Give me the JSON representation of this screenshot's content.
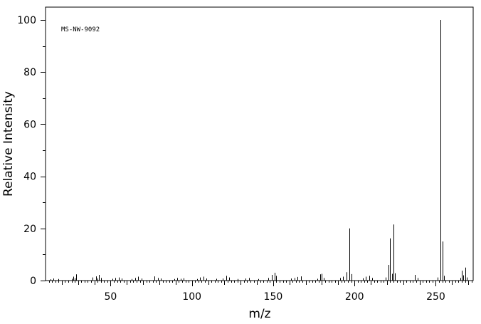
{
  "chart_data": {
    "type": "bar",
    "annotation": "MS-NW-9092",
    "xlabel": "m/z",
    "ylabel": "Relative Intensity",
    "xlim": [
      10,
      273
    ],
    "ylim": [
      0,
      100
    ],
    "x_ticks": [
      50,
      100,
      150,
      200,
      250
    ],
    "y_ticks": [
      0,
      20,
      40,
      60,
      80,
      100
    ],
    "grid": false,
    "peaks": [
      {
        "mz": 13,
        "intensity": 0.5
      },
      {
        "mz": 15,
        "intensity": 0.8
      },
      {
        "mz": 18,
        "intensity": 0.6
      },
      {
        "mz": 26,
        "intensity": 0.7
      },
      {
        "mz": 27,
        "intensity": 1.5
      },
      {
        "mz": 28,
        "intensity": 0.9
      },
      {
        "mz": 29,
        "intensity": 2.4
      },
      {
        "mz": 39,
        "intensity": 1.2
      },
      {
        "mz": 41,
        "intensity": 1.6
      },
      {
        "mz": 42,
        "intensity": 0.8
      },
      {
        "mz": 43,
        "intensity": 2.2
      },
      {
        "mz": 44,
        "intensity": 1.0
      },
      {
        "mz": 51,
        "intensity": 0.7
      },
      {
        "mz": 53,
        "intensity": 1.0
      },
      {
        "mz": 55,
        "intensity": 1.2
      },
      {
        "mz": 57,
        "intensity": 0.8
      },
      {
        "mz": 63,
        "intensity": 0.6
      },
      {
        "mz": 65,
        "intensity": 1.0
      },
      {
        "mz": 67,
        "intensity": 1.5
      },
      {
        "mz": 69,
        "intensity": 0.8
      },
      {
        "mz": 77,
        "intensity": 1.6
      },
      {
        "mz": 79,
        "intensity": 1.0
      },
      {
        "mz": 81,
        "intensity": 0.8
      },
      {
        "mz": 89,
        "intensity": 0.6
      },
      {
        "mz": 91,
        "intensity": 1.0
      },
      {
        "mz": 93,
        "intensity": 0.7
      },
      {
        "mz": 95,
        "intensity": 0.9
      },
      {
        "mz": 103,
        "intensity": 0.6
      },
      {
        "mz": 105,
        "intensity": 1.2
      },
      {
        "mz": 107,
        "intensity": 1.5
      },
      {
        "mz": 109,
        "intensity": 0.8
      },
      {
        "mz": 115,
        "intensity": 0.7
      },
      {
        "mz": 119,
        "intensity": 0.8
      },
      {
        "mz": 121,
        "intensity": 1.8
      },
      {
        "mz": 123,
        "intensity": 1.2
      },
      {
        "mz": 128,
        "intensity": 0.6
      },
      {
        "mz": 133,
        "intensity": 0.8
      },
      {
        "mz": 135,
        "intensity": 1.0
      },
      {
        "mz": 141,
        "intensity": 0.6
      },
      {
        "mz": 147,
        "intensity": 1.0
      },
      {
        "mz": 149,
        "intensity": 2.2
      },
      {
        "mz": 151,
        "intensity": 3.0
      },
      {
        "mz": 152,
        "intensity": 1.8
      },
      {
        "mz": 161,
        "intensity": 0.8
      },
      {
        "mz": 163,
        "intensity": 1.0
      },
      {
        "mz": 165,
        "intensity": 1.4
      },
      {
        "mz": 167,
        "intensity": 1.6
      },
      {
        "mz": 177,
        "intensity": 0.7
      },
      {
        "mz": 179,
        "intensity": 2.4
      },
      {
        "mz": 180,
        "intensity": 2.6
      },
      {
        "mz": 181,
        "intensity": 1.0
      },
      {
        "mz": 191,
        "intensity": 1.0
      },
      {
        "mz": 193,
        "intensity": 1.5
      },
      {
        "mz": 195,
        "intensity": 3.2
      },
      {
        "mz": 197,
        "intensity": 20.0
      },
      {
        "mz": 198,
        "intensity": 2.5
      },
      {
        "mz": 205,
        "intensity": 0.9
      },
      {
        "mz": 207,
        "intensity": 1.5
      },
      {
        "mz": 209,
        "intensity": 1.8
      },
      {
        "mz": 211,
        "intensity": 1.0
      },
      {
        "mz": 219,
        "intensity": 1.2
      },
      {
        "mz": 221,
        "intensity": 6.0
      },
      {
        "mz": 222,
        "intensity": 16.2
      },
      {
        "mz": 223,
        "intensity": 2.6
      },
      {
        "mz": 224,
        "intensity": 21.5
      },
      {
        "mz": 225,
        "intensity": 2.8
      },
      {
        "mz": 237,
        "intensity": 2.2
      },
      {
        "mz": 239,
        "intensity": 1.0
      },
      {
        "mz": 251,
        "intensity": 1.2
      },
      {
        "mz": 253,
        "intensity": 100.0
      },
      {
        "mz": 254,
        "intensity": 15.0
      },
      {
        "mz": 255,
        "intensity": 1.8
      },
      {
        "mz": 265,
        "intensity": 1.0
      },
      {
        "mz": 266,
        "intensity": 3.8
      },
      {
        "mz": 267,
        "intensity": 2.0
      },
      {
        "mz": 268,
        "intensity": 5.0
      },
      {
        "mz": 269,
        "intensity": 1.2
      }
    ]
  }
}
